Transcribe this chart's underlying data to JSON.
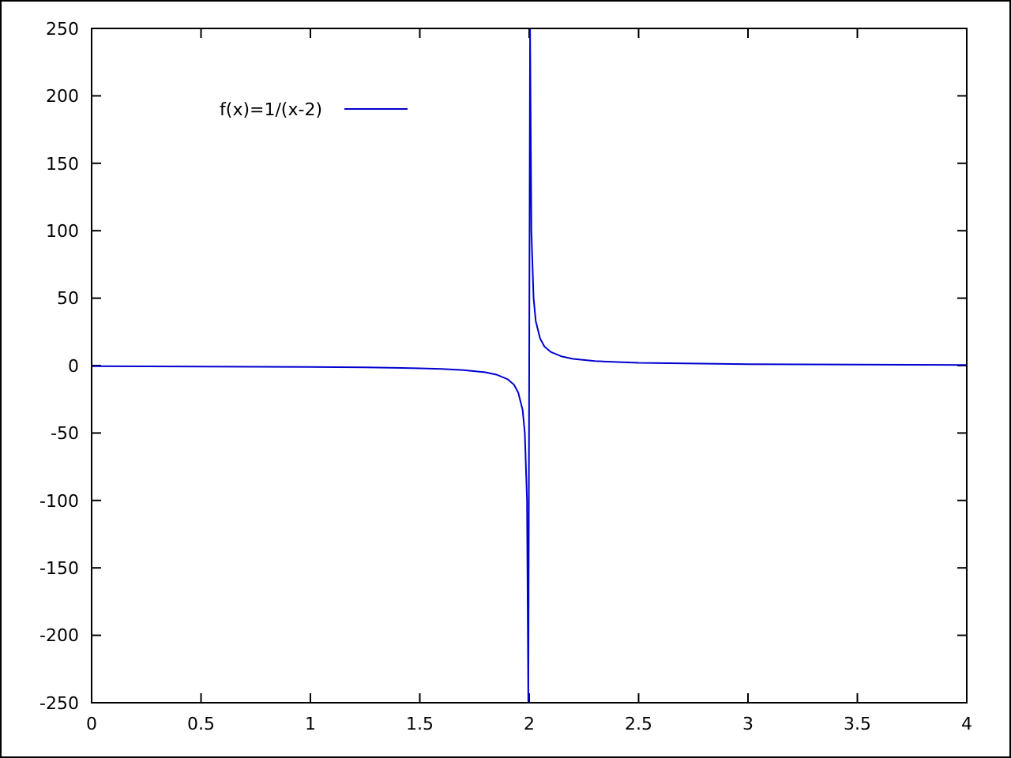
{
  "chart_data": {
    "type": "line",
    "xlim": [
      0,
      4
    ],
    "ylim": [
      -250,
      250
    ],
    "xticks": [
      0,
      0.5,
      1,
      1.5,
      2,
      2.5,
      3,
      3.5,
      4
    ],
    "yticks": [
      -250,
      -200,
      -150,
      -100,
      -50,
      0,
      50,
      100,
      150,
      200,
      250
    ],
    "legend": "top left",
    "grid": false,
    "series": [
      {
        "name": "f(x)=1/(x-2)",
        "color": "#0000d0",
        "x": [
          0,
          0.5,
          1,
          1.25,
          1.5,
          1.6,
          1.7,
          1.8,
          1.85,
          1.9,
          1.93,
          1.95,
          1.97,
          1.98,
          1.99,
          1.996,
          2.004,
          2.01,
          2.02,
          2.03,
          2.05,
          2.07,
          2.1,
          2.15,
          2.2,
          2.3,
          2.5,
          3,
          3.5,
          4
        ],
        "values": [
          -0.5,
          -0.67,
          -1,
          -1.3,
          -2,
          -2.5,
          -3.3,
          -5,
          -6.7,
          -10,
          -14,
          -20,
          -33,
          -50,
          -100,
          -250,
          250,
          100,
          50,
          33,
          20,
          14,
          10,
          6.7,
          5,
          3.3,
          2,
          1,
          0.67,
          0.5
        ]
      }
    ]
  }
}
